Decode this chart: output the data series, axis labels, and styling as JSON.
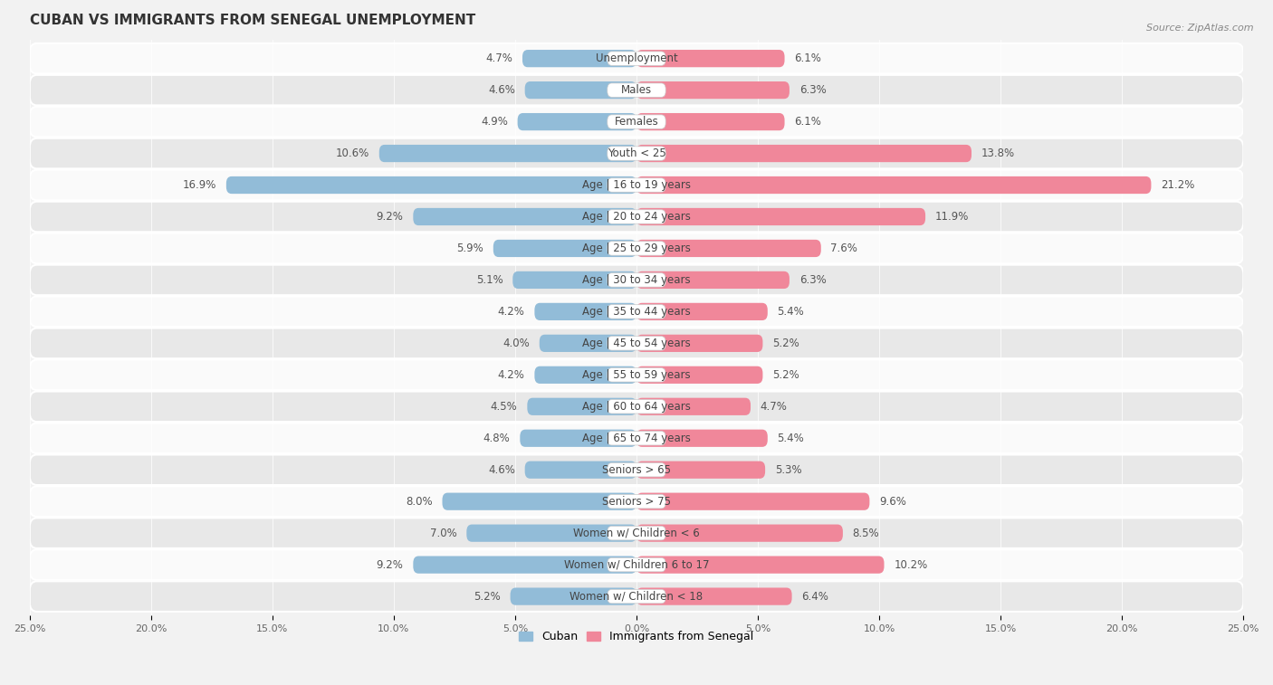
{
  "title": "CUBAN VS IMMIGRANTS FROM SENEGAL UNEMPLOYMENT",
  "source": "Source: ZipAtlas.com",
  "categories": [
    "Unemployment",
    "Males",
    "Females",
    "Youth < 25",
    "Age | 16 to 19 years",
    "Age | 20 to 24 years",
    "Age | 25 to 29 years",
    "Age | 30 to 34 years",
    "Age | 35 to 44 years",
    "Age | 45 to 54 years",
    "Age | 55 to 59 years",
    "Age | 60 to 64 years",
    "Age | 65 to 74 years",
    "Seniors > 65",
    "Seniors > 75",
    "Women w/ Children < 6",
    "Women w/ Children 6 to 17",
    "Women w/ Children < 18"
  ],
  "cuban": [
    4.7,
    4.6,
    4.9,
    10.6,
    16.9,
    9.2,
    5.9,
    5.1,
    4.2,
    4.0,
    4.2,
    4.5,
    4.8,
    4.6,
    8.0,
    7.0,
    9.2,
    5.2
  ],
  "senegal": [
    6.1,
    6.3,
    6.1,
    13.8,
    21.2,
    11.9,
    7.6,
    6.3,
    5.4,
    5.2,
    5.2,
    4.7,
    5.4,
    5.3,
    9.6,
    8.5,
    10.2,
    6.4
  ],
  "cuban_color": "#92bcd8",
  "senegal_color": "#f0879a",
  "bar_height": 0.55,
  "xlim": 25.0,
  "bg_color": "#f2f2f2",
  "row_light_color": "#fafafa",
  "row_dark_color": "#e8e8e8",
  "label_fontsize": 8.5,
  "title_fontsize": 11,
  "legend_cuban": "Cuban",
  "legend_senegal": "Immigrants from Senegal",
  "value_label_color": "#555555",
  "center_label_color": "#444444",
  "tick_label_color": "#666666"
}
